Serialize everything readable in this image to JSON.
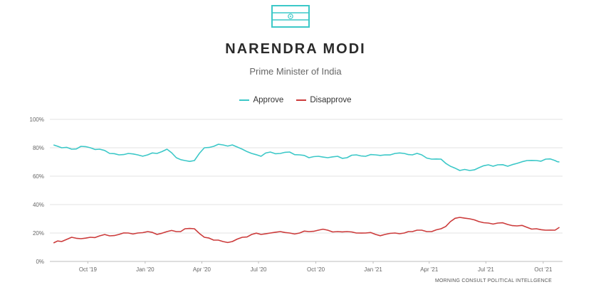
{
  "header": {
    "icon": "india-flag-icon",
    "title": "NARENDRA MODI",
    "subtitle": "Prime Minister of India"
  },
  "colors": {
    "approve": "#3cc8c8",
    "disapprove": "#cc3b3b",
    "grid": "#e3e3e3",
    "flag": "#3cc8c8"
  },
  "footer": {
    "source": "MORNING CONSULT POLITICAL INTELLGENCE"
  },
  "chart_data": {
    "type": "line",
    "xlabel": "",
    "ylabel": "",
    "ylim": [
      0,
      100
    ],
    "y_ticks": [
      "0%",
      "20%",
      "40%",
      "60%",
      "80%",
      "100%"
    ],
    "y_tick_values": [
      0,
      20,
      40,
      60,
      80,
      100
    ],
    "x_ticks": [
      "Oct '19",
      "Jan '20",
      "Apr '20",
      "Jul '20",
      "Oct '20",
      "Jan '21",
      "Apr '21",
      "Jul '21",
      "Oct '21"
    ],
    "x_tick_dates": [
      "2019-10-01",
      "2020-01-01",
      "2020-04-01",
      "2020-07-01",
      "2020-10-01",
      "2021-01-01",
      "2021-04-01",
      "2021-07-01",
      "2021-10-01"
    ],
    "x_range": [
      "2019-08-01",
      "2021-11-01"
    ],
    "grid": true,
    "legend_position": "top-center",
    "series": [
      {
        "name": "Approve",
        "x": [
          "2019-08-07",
          "2019-08-20",
          "2019-09-05",
          "2019-09-20",
          "2019-10-05",
          "2019-10-20",
          "2019-11-05",
          "2019-11-20",
          "2019-12-05",
          "2019-12-20",
          "2020-01-05",
          "2020-01-20",
          "2020-02-05",
          "2020-02-20",
          "2020-03-05",
          "2020-03-20",
          "2020-04-05",
          "2020-04-20",
          "2020-05-05",
          "2020-05-20",
          "2020-06-05",
          "2020-06-20",
          "2020-07-05",
          "2020-07-20",
          "2020-08-05",
          "2020-08-20",
          "2020-09-05",
          "2020-09-20",
          "2020-10-05",
          "2020-10-20",
          "2020-11-05",
          "2020-11-20",
          "2020-12-05",
          "2020-12-20",
          "2021-01-05",
          "2021-01-20",
          "2021-02-05",
          "2021-02-20",
          "2021-03-05",
          "2021-03-20",
          "2021-04-05",
          "2021-04-20",
          "2021-05-05",
          "2021-05-20",
          "2021-06-05",
          "2021-06-20",
          "2021-07-05",
          "2021-07-20",
          "2021-08-05",
          "2021-08-20",
          "2021-09-05",
          "2021-09-20",
          "2021-10-05",
          "2021-10-20",
          "2021-10-27"
        ],
        "values": [
          82,
          80,
          79,
          81,
          80,
          79,
          76,
          75,
          76,
          75,
          75,
          76,
          79,
          73,
          71,
          71,
          80,
          81,
          82,
          82,
          79,
          76,
          74,
          77,
          76,
          77,
          75,
          73,
          74,
          73,
          74,
          73,
          75,
          74,
          75,
          75,
          76,
          76,
          75,
          75,
          72,
          72,
          67,
          64,
          64,
          66,
          68,
          68,
          67,
          69,
          71,
          71,
          72,
          71,
          70
        ]
      },
      {
        "name": "Disapprove",
        "x": [
          "2019-08-07",
          "2019-08-20",
          "2019-09-05",
          "2019-09-20",
          "2019-10-05",
          "2019-10-20",
          "2019-11-05",
          "2019-11-20",
          "2019-12-05",
          "2019-12-20",
          "2020-01-05",
          "2020-01-20",
          "2020-02-05",
          "2020-02-20",
          "2020-03-05",
          "2020-03-20",
          "2020-04-05",
          "2020-04-20",
          "2020-05-05",
          "2020-05-20",
          "2020-06-05",
          "2020-06-20",
          "2020-07-05",
          "2020-07-20",
          "2020-08-05",
          "2020-08-20",
          "2020-09-05",
          "2020-09-20",
          "2020-10-05",
          "2020-10-20",
          "2020-11-05",
          "2020-11-20",
          "2020-12-05",
          "2020-12-20",
          "2021-01-05",
          "2021-01-20",
          "2021-02-05",
          "2021-02-20",
          "2021-03-05",
          "2021-03-20",
          "2021-04-05",
          "2021-04-20",
          "2021-05-05",
          "2021-05-20",
          "2021-06-05",
          "2021-06-20",
          "2021-07-05",
          "2021-07-20",
          "2021-08-05",
          "2021-08-20",
          "2021-09-05",
          "2021-09-20",
          "2021-10-05",
          "2021-10-20",
          "2021-10-27"
        ],
        "values": [
          13,
          14,
          17,
          16,
          17,
          18,
          18,
          19,
          20,
          20,
          21,
          19,
          21,
          21,
          23,
          23,
          17,
          15,
          14,
          14,
          17,
          19,
          19,
          20,
          21,
          20,
          20,
          21,
          22,
          22,
          21,
          21,
          20,
          20,
          19,
          19,
          20,
          20,
          21,
          22,
          21,
          23,
          28,
          31,
          30,
          28,
          27,
          27,
          26,
          25,
          24,
          23,
          22,
          22,
          24
        ]
      }
    ]
  },
  "legend": {
    "approve": "Approve",
    "disapprove": "Disapprove"
  }
}
